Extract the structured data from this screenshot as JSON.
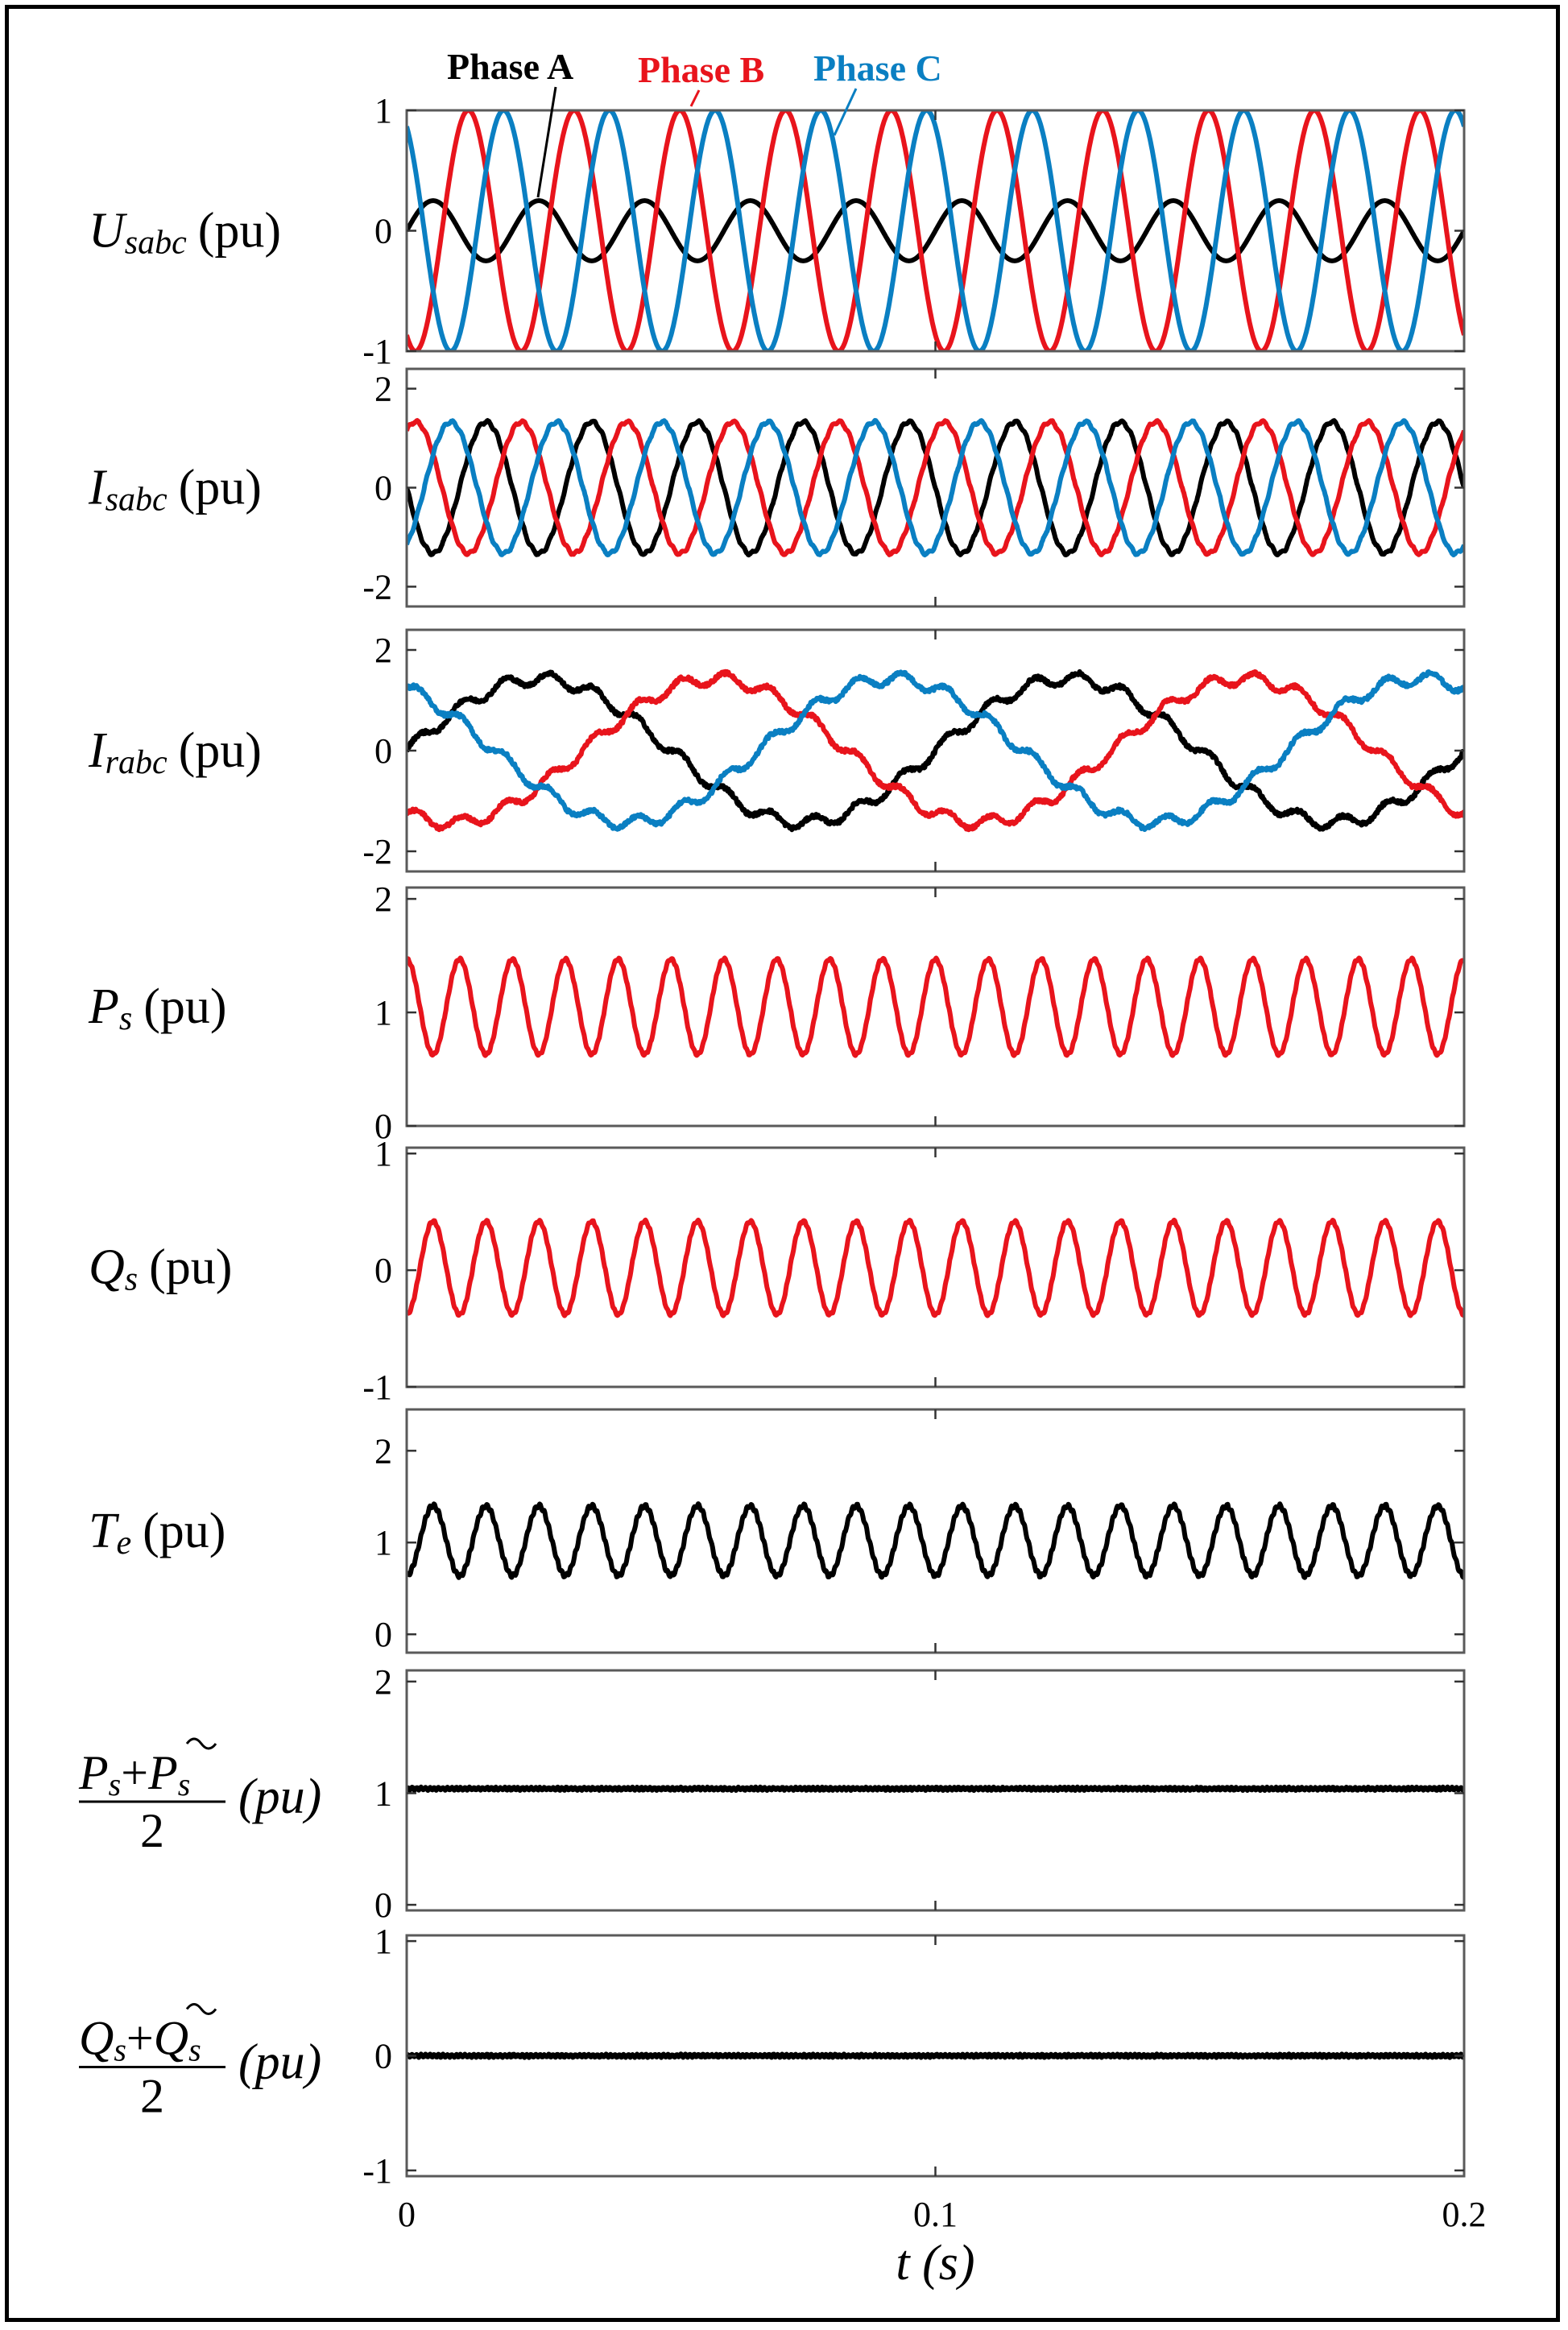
{
  "chart_data": {
    "type": "line",
    "x_unit": "s",
    "xlim": [
      0,
      0.2
    ],
    "x_ticks": [
      "0",
      "0.1",
      "0.2"
    ],
    "xlabel": {
      "var": "t",
      "unit": "(s)"
    },
    "legend": {
      "placement": "top",
      "entries": [
        {
          "name": "Phase A",
          "color": "#000000"
        },
        {
          "name": "Phase B",
          "color": "#e8141c"
        },
        {
          "name": "Phase C",
          "color": "#0a7fc2"
        }
      ]
    },
    "grid": false,
    "panels": [
      {
        "ylabel": {
          "var": "U",
          "sub": "sabc",
          "unit": "(pu)"
        },
        "ylim": [
          -1,
          1
        ],
        "y_ticks": [
          "1",
          "0",
          "-1"
        ],
        "series": [
          {
            "name": "Phase A",
            "color": "#000000",
            "amplitude": 0.25,
            "freq_hz": 50,
            "phase_deg": 0,
            "offset": 0,
            "ripple": 0
          },
          {
            "name": "Phase B",
            "color": "#e8141c",
            "amplitude": 1.0,
            "freq_hz": 50,
            "phase_deg": -120,
            "offset": 0,
            "ripple": 0
          },
          {
            "name": "Phase C",
            "color": "#0a7fc2",
            "amplitude": 1.0,
            "freq_hz": 50,
            "phase_deg": 120,
            "offset": 0,
            "ripple": 0
          }
        ]
      },
      {
        "ylabel": {
          "var": "I",
          "sub": "sabc",
          "unit": "(pu)"
        },
        "ylim": [
          -2.4,
          2.4
        ],
        "y_ticks": [
          "2",
          "0",
          "-2"
        ],
        "series": [
          {
            "name": "Phase A",
            "color": "#000000",
            "amplitude": 1.33,
            "freq_hz": 50,
            "phase_deg": 180,
            "offset": 0,
            "ripple": 0.03
          },
          {
            "name": "Phase B",
            "color": "#e8141c",
            "amplitude": 1.33,
            "freq_hz": 50,
            "phase_deg": 60,
            "offset": 0,
            "ripple": 0.03
          },
          {
            "name": "Phase C",
            "color": "#0a7fc2",
            "amplitude": 1.33,
            "freq_hz": 50,
            "phase_deg": -60,
            "offset": 0,
            "ripple": 0.03
          }
        ]
      },
      {
        "ylabel": {
          "var": "I",
          "sub": "rabc",
          "unit": "(pu)"
        },
        "ylim": [
          -2.4,
          2.4
        ],
        "y_ticks": [
          "2",
          "0",
          "-2"
        ],
        "series": [
          {
            "name": "Phase A",
            "color": "#000000",
            "amplitude": 1.43,
            "freq_hz": 10,
            "phase_deg": 0,
            "offset": 0,
            "ripple": 0.12
          },
          {
            "name": "Phase B",
            "color": "#e8141c",
            "amplitude": 1.43,
            "freq_hz": 10,
            "phase_deg": -120,
            "offset": 0,
            "ripple": 0.12
          },
          {
            "name": "Phase C",
            "color": "#0a7fc2",
            "amplitude": 1.43,
            "freq_hz": 10,
            "phase_deg": 120,
            "offset": 0,
            "ripple": 0.12
          }
        ]
      },
      {
        "ylabel": {
          "var": "P",
          "sub": "s",
          "unit": "(pu)"
        },
        "ylim": [
          0,
          2.1
        ],
        "y_ticks": [
          "2",
          "1",
          "0"
        ],
        "series": [
          {
            "name": "Ps",
            "color": "#e8141c",
            "amplitude": 0.42,
            "freq_hz": 100,
            "phase_deg": 90,
            "offset": 1.05,
            "ripple": 0.01
          }
        ]
      },
      {
        "ylabel": {
          "var": "Q",
          "sub": "s",
          "unit": "(pu)"
        },
        "ylim": [
          -1,
          1.05
        ],
        "y_ticks": [
          "1",
          "0",
          "-1"
        ],
        "series": [
          {
            "name": "Qs",
            "color": "#e8141c",
            "amplitude": 0.4,
            "freq_hz": 100,
            "phase_deg": -90,
            "offset": 0.02,
            "ripple": 0.01
          }
        ]
      },
      {
        "ylabel": {
          "var": "T",
          "sub": "e",
          "unit": "(pu)"
        },
        "ylim": [
          -0.2,
          2.45
        ],
        "y_ticks": [
          "2",
          "1",
          "0"
        ],
        "series": [
          {
            "name": "Te",
            "color": "#000000",
            "amplitude": 0.38,
            "freq_hz": 100,
            "phase_deg": -90,
            "offset": 1.02,
            "ripple": 0.02
          }
        ]
      },
      {
        "ylabel": {
          "var": "P",
          "sub": "s",
          "plus_var": "P",
          "plus_sub": "s",
          "denom": "2",
          "unit": "(pu)",
          "fraction": true
        },
        "ylim": [
          -0.05,
          2.1
        ],
        "y_ticks": [
          "2",
          "1",
          "0"
        ],
        "series": [
          {
            "name": "(Ps+~Ps)/2",
            "color": "#000000",
            "amplitude": 0,
            "freq_hz": 100,
            "phase_deg": 0,
            "offset": 1.04,
            "ripple": 0.012
          }
        ]
      },
      {
        "ylabel": {
          "var": "Q",
          "sub": "s",
          "plus_var": "Q",
          "plus_sub": "s",
          "denom": "2",
          "unit": "(pu)",
          "fraction": true
        },
        "ylim": [
          -1.05,
          1.05
        ],
        "y_ticks": [
          "1",
          "0",
          "-1"
        ],
        "series": [
          {
            "name": "(Qs+~Qs)/2",
            "color": "#000000",
            "amplitude": 0,
            "freq_hz": 100,
            "phase_deg": 0,
            "offset": 0.0,
            "ripple": 0.012
          }
        ]
      }
    ]
  }
}
